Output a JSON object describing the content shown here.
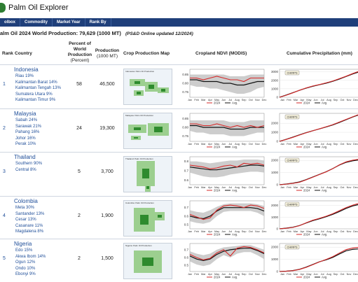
{
  "app": {
    "title": "Palm Oil Explorer"
  },
  "nav": [
    {
      "label": "olbox"
    },
    {
      "label": "Commodity"
    },
    {
      "label": "Market Year"
    },
    {
      "label": "Rank By"
    }
  ],
  "summary": {
    "title": "alm Oil 2024  World Production: 79,629 (1000 MT)",
    "note": "(PS&D Online updated 12/2024)"
  },
  "headers": {
    "rank": "Rank",
    "country": "Country",
    "percent": "Percent of World Production",
    "percent_unit": "(Percent)",
    "production": "Production",
    "production_unit": "(1000 MT)",
    "map": "Crop Production Map",
    "ndvi": "Cropland NDVI (MODIS)",
    "precip": "Cumulative Precipitation (mm)"
  },
  "months": [
    "Jan",
    "Feb",
    "Mar",
    "Apr",
    "May",
    "Jun",
    "Jul",
    "Aug",
    "Sep",
    "Oct",
    "Nov",
    "Dec"
  ],
  "legend": {
    "current": "2024",
    "avg": "Avg.",
    "source": "CHIRPS"
  },
  "colors": {
    "current": "#d62a2a",
    "avg": "#111111",
    "band": "#b8b8b8",
    "link": "#1f4e99",
    "nav": "#1f3f7a"
  },
  "rows": [
    {
      "rank": "1",
      "country": "Indonesia",
      "regions": [
        "Riau 19%",
        "Kalimantan Barat 14%",
        "Kalimantan Tengah 13%",
        "Sumatera Utara 9%",
        "Kalimantan Timur 9%"
      ],
      "percent": "58",
      "production": "46,500",
      "map_title": "Indonesia: Palm Oil Production",
      "ndvi": {
        "yticks": [
          "0.85",
          "0.80",
          "0.75"
        ],
        "ymin": 0.72,
        "ymax": 0.88,
        "avg": [
          0.82,
          0.82,
          0.81,
          0.81,
          0.81,
          0.8,
          0.8,
          0.79,
          0.79,
          0.8,
          0.81,
          0.81
        ],
        "cur": [
          0.83,
          0.83,
          0.82,
          0.83,
          0.84,
          0.83,
          0.82,
          0.82,
          0.81,
          0.83,
          0.83,
          0.83
        ],
        "lo": [
          0.79,
          0.78,
          0.78,
          0.77,
          0.77,
          0.76,
          0.75,
          0.74,
          0.74,
          0.75,
          0.77,
          0.78
        ],
        "hi": [
          0.85,
          0.85,
          0.85,
          0.85,
          0.85,
          0.85,
          0.84,
          0.84,
          0.84,
          0.85,
          0.85,
          0.85
        ]
      },
      "precip": {
        "yticks": [
          "3000",
          "2000",
          "1000",
          "0"
        ],
        "ymax": 3300,
        "avg": [
          0,
          260,
          540,
          820,
          1080,
          1300,
          1480,
          1660,
          1880,
          2150,
          2450,
          2750,
          3000
        ],
        "cur": [
          0,
          240,
          520,
          830,
          1100,
          1330,
          1500,
          1700,
          1920,
          2200,
          2480,
          2800,
          3080
        ]
      }
    },
    {
      "rank": "2",
      "country": "Malaysia",
      "regions": [
        "Sabah 24%",
        "Sarawak 21%",
        "Pahang 16%",
        "Johor 16%",
        "Perak 10%"
      ],
      "percent": "24",
      "production": "19,300",
      "map_title": "Malaysia: Palm Oil Production",
      "ndvi": {
        "yticks": [
          "0.85",
          "0.80",
          "0.75"
        ],
        "ymin": 0.72,
        "ymax": 0.88,
        "avg": [
          0.81,
          0.81,
          0.8,
          0.8,
          0.8,
          0.8,
          0.79,
          0.79,
          0.79,
          0.8,
          0.8,
          0.8
        ],
        "cur": [
          0.82,
          0.82,
          0.81,
          0.81,
          0.82,
          0.81,
          0.8,
          0.81,
          0.8,
          0.81,
          0.8,
          0.81
        ],
        "lo": [
          0.78,
          0.77,
          0.77,
          0.76,
          0.76,
          0.76,
          0.75,
          0.75,
          0.75,
          0.76,
          0.77,
          0.77
        ],
        "hi": [
          0.84,
          0.84,
          0.84,
          0.84,
          0.84,
          0.84,
          0.83,
          0.83,
          0.83,
          0.84,
          0.84,
          0.84
        ]
      },
      "precip": {
        "yticks": [
          "2000",
          "1000",
          "0"
        ],
        "ymax": 3100,
        "avg": [
          0,
          230,
          470,
          720,
          960,
          1180,
          1380,
          1590,
          1820,
          2100,
          2400,
          2700,
          2950
        ],
        "cur": [
          0,
          210,
          440,
          700,
          950,
          1170,
          1390,
          1620,
          1850,
          2140,
          2430,
          2720,
          3000
        ]
      }
    },
    {
      "rank": "3",
      "country": "Thailand",
      "regions": [
        "Southern 90%",
        "Central 8%"
      ],
      "percent": "5",
      "production": "3,700",
      "map_title": "Thailand: Palm Oil Production",
      "ndvi": {
        "yticks": [
          "0.8",
          "0.7",
          "0.6"
        ],
        "ymin": 0.55,
        "ymax": 0.85,
        "avg": [
          0.74,
          0.73,
          0.72,
          0.71,
          0.71,
          0.72,
          0.73,
          0.74,
          0.75,
          0.76,
          0.76,
          0.75
        ],
        "cur": [
          0.76,
          0.75,
          0.74,
          0.72,
          0.73,
          0.75,
          0.76,
          0.74,
          0.78,
          0.77,
          0.78,
          0.76
        ],
        "lo": [
          0.68,
          0.66,
          0.64,
          0.63,
          0.63,
          0.64,
          0.66,
          0.67,
          0.68,
          0.69,
          0.69,
          0.68
        ],
        "hi": [
          0.8,
          0.8,
          0.79,
          0.78,
          0.79,
          0.8,
          0.81,
          0.81,
          0.82,
          0.82,
          0.82,
          0.81
        ]
      },
      "precip": {
        "yticks": [
          "2000",
          "1000",
          "0"
        ],
        "ymax": 2300,
        "avg": [
          0,
          60,
          130,
          230,
          420,
          640,
          850,
          1070,
          1330,
          1620,
          1840,
          1970,
          2040
        ],
        "cur": [
          0,
          50,
          110,
          200,
          400,
          620,
          840,
          1060,
          1320,
          1640,
          1880,
          2020,
          2100
        ]
      }
    },
    {
      "rank": "4",
      "country": "Colombia",
      "regions": [
        "Meta 30%",
        "Santander 13%",
        "Cesar 13%",
        "Casanare 11%",
        "Magdalena 8%"
      ],
      "percent": "2",
      "production": "1,900",
      "map_title": "Colombia: Palm Oil Production",
      "ndvi": {
        "yticks": [
          "0.7",
          "0.6",
          "0.5"
        ],
        "ymin": 0.45,
        "ymax": 0.78,
        "avg": [
          0.6,
          0.58,
          0.57,
          0.6,
          0.66,
          0.7,
          0.7,
          0.7,
          0.7,
          0.7,
          0.69,
          0.66
        ],
        "cur": [
          0.62,
          0.59,
          0.56,
          0.58,
          0.67,
          0.72,
          0.73,
          0.72,
          0.7,
          0.73,
          0.72,
          0.69
        ],
        "lo": [
          0.54,
          0.52,
          0.51,
          0.53,
          0.6,
          0.65,
          0.66,
          0.66,
          0.66,
          0.66,
          0.64,
          0.6
        ],
        "hi": [
          0.67,
          0.65,
          0.64,
          0.67,
          0.71,
          0.74,
          0.75,
          0.75,
          0.75,
          0.75,
          0.74,
          0.72
        ]
      },
      "precip": {
        "yticks": [
          "2000",
          "1000",
          "0"
        ],
        "ymax": 2400,
        "avg": [
          0,
          60,
          140,
          280,
          500,
          700,
          860,
          1040,
          1240,
          1480,
          1750,
          1960,
          2100
        ],
        "cur": [
          0,
          50,
          120,
          270,
          520,
          740,
          900,
          1080,
          1300,
          1560,
          1820,
          2030,
          2200
        ]
      }
    },
    {
      "rank": "5",
      "country": "Nigeria",
      "regions": [
        "Edo 15%",
        "Akwa Ibom 14%",
        "Ogun 12%",
        "Ondo 10%",
        "Ebonyi 9%"
      ],
      "percent": "2",
      "production": "1,500",
      "map_title": "Nigeria: Palm Oil Production",
      "ndvi": {
        "yticks": [
          "0.7",
          "0.6",
          "0.5"
        ],
        "ymin": 0.42,
        "ymax": 0.78,
        "avg": [
          0.62,
          0.58,
          0.56,
          0.58,
          0.64,
          0.68,
          0.7,
          0.71,
          0.72,
          0.72,
          0.69,
          0.65
        ],
        "cur": [
          0.64,
          0.6,
          0.57,
          0.59,
          0.66,
          0.7,
          0.62,
          0.72,
          0.74,
          0.73,
          0.7,
          0.66
        ],
        "lo": [
          0.55,
          0.51,
          0.49,
          0.51,
          0.58,
          0.63,
          0.6,
          0.65,
          0.67,
          0.67,
          0.63,
          0.58
        ],
        "hi": [
          0.68,
          0.65,
          0.63,
          0.65,
          0.7,
          0.73,
          0.74,
          0.75,
          0.76,
          0.76,
          0.73,
          0.7
        ]
      },
      "precip": {
        "yticks": [
          "2000",
          "1000",
          "0"
        ],
        "ymax": 2300,
        "avg": [
          0,
          30,
          80,
          180,
          360,
          580,
          800,
          960,
          1160,
          1440,
          1700,
          1820,
          1860
        ],
        "cur": [
          0,
          25,
          70,
          170,
          340,
          560,
          790,
          990,
          1220,
          1520,
          1800,
          1930,
          1990
        ]
      }
    }
  ]
}
